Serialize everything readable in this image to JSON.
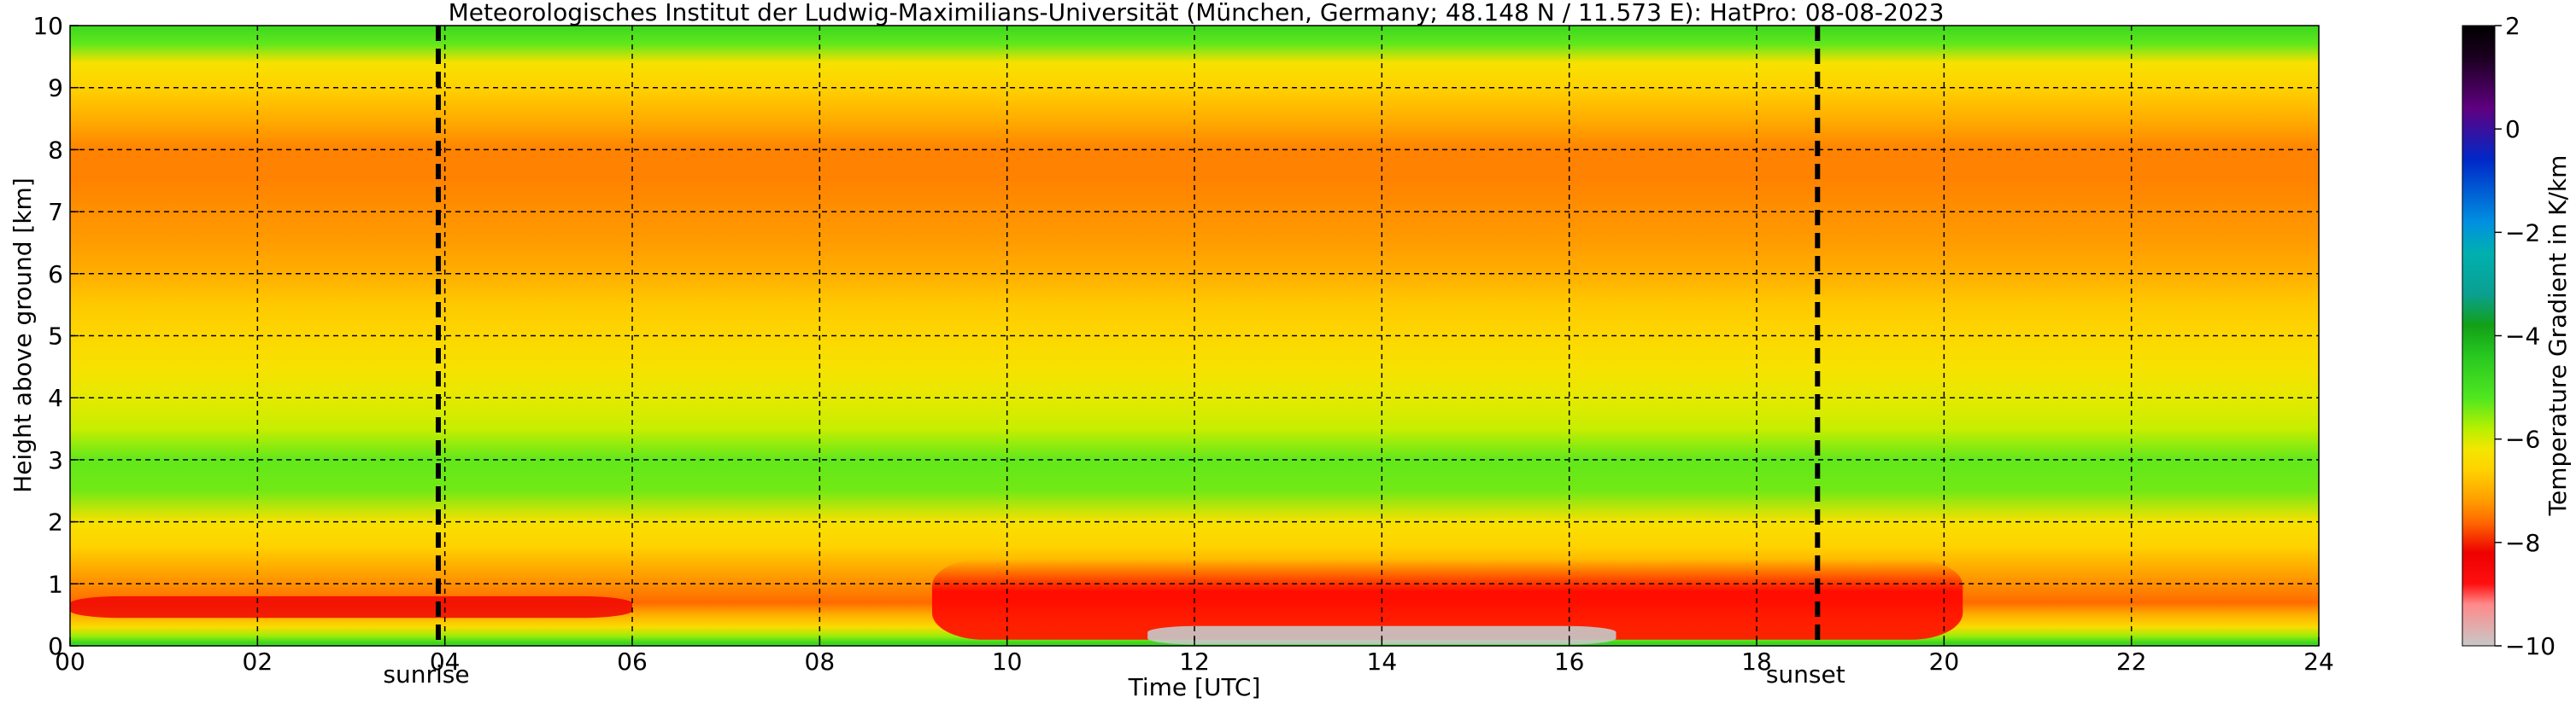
{
  "chart_data": {
    "type": "heatmap",
    "title": "Meteorologisches Institut der Ludwig-Maximilians-Universität (München, Germany; 48.148 N / 11.573 E):    HatPro: 08-08-2023",
    "xlabel": "Time [UTC]",
    "ylabel": "Height above ground [km]",
    "xlim": [
      0,
      24
    ],
    "ylim": [
      0,
      10
    ],
    "x_ticks": [
      "00",
      "02",
      "04",
      "06",
      "08",
      "10",
      "12",
      "14",
      "16",
      "18",
      "20",
      "22",
      "24"
    ],
    "y_ticks": [
      "0",
      "1",
      "2",
      "3",
      "4",
      "5",
      "6",
      "7",
      "8",
      "9",
      "10"
    ],
    "grid": true,
    "colorbar": {
      "label": "Temperature Gradient in K/km",
      "range": [
        -10,
        2
      ],
      "ticks": [
        "2",
        "0",
        "−2",
        "−4",
        "−6",
        "−8",
        "−10"
      ],
      "colors": [
        {
          "value": -10,
          "color": "#c8c8c8"
        },
        {
          "value": -9.2,
          "color": "#ff8a8a"
        },
        {
          "value": -8.8,
          "color": "#ff1010"
        },
        {
          "value": -8.2,
          "color": "#ee0000"
        },
        {
          "value": -7.6,
          "color": "#ff6a00"
        },
        {
          "value": -7.2,
          "color": "#ff9c00"
        },
        {
          "value": -6.6,
          "color": "#ffd200"
        },
        {
          "value": -6.2,
          "color": "#f4e600"
        },
        {
          "value": -5.8,
          "color": "#b8f000"
        },
        {
          "value": -5.2,
          "color": "#50e620"
        },
        {
          "value": -4.4,
          "color": "#28c820"
        },
        {
          "value": -3.8,
          "color": "#12a018"
        },
        {
          "value": -3.2,
          "color": "#0aa090"
        },
        {
          "value": -2.4,
          "color": "#00b0b0"
        },
        {
          "value": -1.8,
          "color": "#0090e0"
        },
        {
          "value": -0.6,
          "color": "#0028c8"
        },
        {
          "value": 0.4,
          "color": "#600080"
        },
        {
          "value": 1.4,
          "color": "#1a001e"
        },
        {
          "value": 2,
          "color": "#000000"
        }
      ]
    },
    "events": [
      {
        "label": "sunrise",
        "time": 3.93
      },
      {
        "label": "sunset",
        "time": 18.65
      }
    ],
    "profile_by_height": [
      {
        "height": 0.05,
        "value": -4.8
      },
      {
        "height": 0.15,
        "value": -5.6
      },
      {
        "height": 0.3,
        "value": -6.4
      },
      {
        "height": 0.5,
        "value": -7.0
      },
      {
        "height": 0.7,
        "value": -7.6
      },
      {
        "height": 0.9,
        "value": -7.4
      },
      {
        "height": 1.2,
        "value": -7.1
      },
      {
        "height": 1.6,
        "value": -6.6
      },
      {
        "height": 2.0,
        "value": -6.3
      },
      {
        "height": 2.5,
        "value": -5.4
      },
      {
        "height": 3.0,
        "value": -5.3
      },
      {
        "height": 3.5,
        "value": -5.9
      },
      {
        "height": 4.0,
        "value": -6.1
      },
      {
        "height": 4.5,
        "value": -6.3
      },
      {
        "height": 5.0,
        "value": -6.5
      },
      {
        "height": 5.5,
        "value": -6.7
      },
      {
        "height": 6.0,
        "value": -7.0
      },
      {
        "height": 6.5,
        "value": -7.2
      },
      {
        "height": 7.0,
        "value": -7.3
      },
      {
        "height": 7.5,
        "value": -7.4
      },
      {
        "height": 8.0,
        "value": -7.4
      },
      {
        "height": 8.5,
        "value": -7.0
      },
      {
        "height": 9.0,
        "value": -6.6
      },
      {
        "height": 9.4,
        "value": -6.3
      },
      {
        "height": 9.7,
        "value": -5.3
      },
      {
        "height": 10.0,
        "value": -4.8
      }
    ],
    "features": [
      {
        "description": "strong negative gradient (red) layer",
        "time_range": [
          9.2,
          20.2
        ],
        "height_range": [
          0.1,
          1.4
        ],
        "value": -8.6
      },
      {
        "description": "morning red patches",
        "time_range": [
          0.0,
          6.0
        ],
        "height_range": [
          0.45,
          0.8
        ],
        "value": -8.3
      },
      {
        "description": "superadiabatic surface values (grey)",
        "time_range": [
          11.5,
          16.5
        ],
        "height_range": [
          0.02,
          0.32
        ],
        "value": -10
      }
    ]
  }
}
